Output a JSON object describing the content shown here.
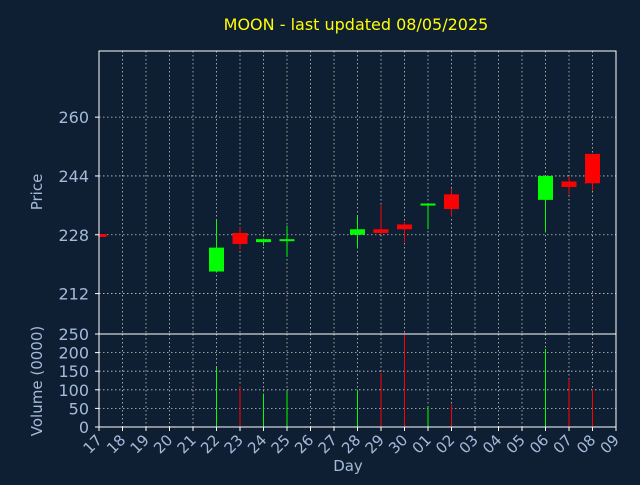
{
  "title": "MOON - last updated 08/05/2025",
  "colors": {
    "background": "#0f1f33",
    "title": "#ffff00",
    "axis_text": "#a3bbd9",
    "frame": "#ffffff",
    "grid": "#c8c8c8",
    "up": "#00ff00",
    "down": "#ff0000"
  },
  "chart_data": [
    {
      "type": "candlestick",
      "ylabel": "Price",
      "ylim": [
        201,
        278
      ],
      "yticks": [
        212,
        228,
        244,
        260
      ],
      "grid": true,
      "candles": [
        {
          "x": "17",
          "open": 228.2,
          "high": 228.4,
          "low": 227.2,
          "close": 227.4
        },
        {
          "x": "22",
          "open": 218.0,
          "high": 232.0,
          "low": 218.0,
          "close": 224.5
        },
        {
          "x": "23",
          "open": 228.5,
          "high": 230.0,
          "low": 224.0,
          "close": 225.5
        },
        {
          "x": "24",
          "open": 226.0,
          "high": 227.0,
          "low": 225.0,
          "close": 226.8
        },
        {
          "x": "25",
          "open": 226.5,
          "high": 230.5,
          "low": 222.0,
          "close": 226.8
        },
        {
          "x": "28",
          "open": 228.0,
          "high": 233.0,
          "low": 224.5,
          "close": 229.5
        },
        {
          "x": "29",
          "open": 229.5,
          "high": 236.0,
          "low": 228.0,
          "close": 228.5
        },
        {
          "x": "30",
          "open": 230.8,
          "high": 231.5,
          "low": 226.0,
          "close": 229.5
        },
        {
          "x": "01",
          "open": 236.0,
          "high": 236.5,
          "low": 229.5,
          "close": 236.5
        },
        {
          "x": "02",
          "open": 239.0,
          "high": 240.5,
          "low": 233.0,
          "close": 235.0
        },
        {
          "x": "06",
          "open": 237.5,
          "high": 244.0,
          "low": 229.0,
          "close": 244.0
        },
        {
          "x": "07",
          "open": 242.5,
          "high": 244.0,
          "low": 239.0,
          "close": 241.0
        },
        {
          "x": "08",
          "open": 250.0,
          "high": 250.0,
          "low": 240.0,
          "close": 242.0
        }
      ]
    },
    {
      "type": "bar",
      "ylabel": "Volume (0000)",
      "xlabel": "Day",
      "ylim": [
        0,
        250
      ],
      "yticks": [
        0,
        50,
        100,
        150,
        200,
        250
      ],
      "grid": true,
      "categories": [
        "17",
        "18",
        "19",
        "20",
        "21",
        "22",
        "23",
        "24",
        "25",
        "26",
        "27",
        "28",
        "29",
        "30",
        "01",
        "02",
        "03",
        "04",
        "05",
        "06",
        "07",
        "08",
        "09"
      ],
      "bars": [
        {
          "x": "22",
          "value": 160,
          "direction": "up"
        },
        {
          "x": "23",
          "value": 110,
          "direction": "down"
        },
        {
          "x": "24",
          "value": 90,
          "direction": "up"
        },
        {
          "x": "25",
          "value": 95,
          "direction": "up"
        },
        {
          "x": "28",
          "value": 100,
          "direction": "up"
        },
        {
          "x": "29",
          "value": 145,
          "direction": "down"
        },
        {
          "x": "30",
          "value": 250,
          "direction": "down"
        },
        {
          "x": "01",
          "value": 55,
          "direction": "up"
        },
        {
          "x": "02",
          "value": 60,
          "direction": "down"
        },
        {
          "x": "06",
          "value": 210,
          "direction": "up"
        },
        {
          "x": "07",
          "value": 130,
          "direction": "down"
        },
        {
          "x": "08",
          "value": 100,
          "direction": "down"
        }
      ]
    }
  ]
}
